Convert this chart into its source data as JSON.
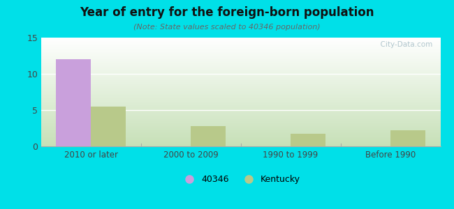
{
  "title": "Year of entry for the foreign-born population",
  "subtitle": "(Note: State values scaled to 40346 population)",
  "categories": [
    "2010 or later",
    "2000 to 2009",
    "1990 to 1999",
    "Before 1990"
  ],
  "values_40346": [
    12,
    0,
    0,
    0
  ],
  "values_kentucky": [
    5.5,
    2.8,
    1.7,
    2.2
  ],
  "color_40346": "#c9a0dc",
  "color_kentucky": "#b8c98a",
  "bg_outer": "#00e0e8",
  "ylim": [
    0,
    15
  ],
  "yticks": [
    0,
    5,
    10,
    15
  ],
  "bar_width": 0.35,
  "legend_40346": "40346",
  "legend_kentucky": "Kentucky",
  "watermark": "  City-Data.com"
}
